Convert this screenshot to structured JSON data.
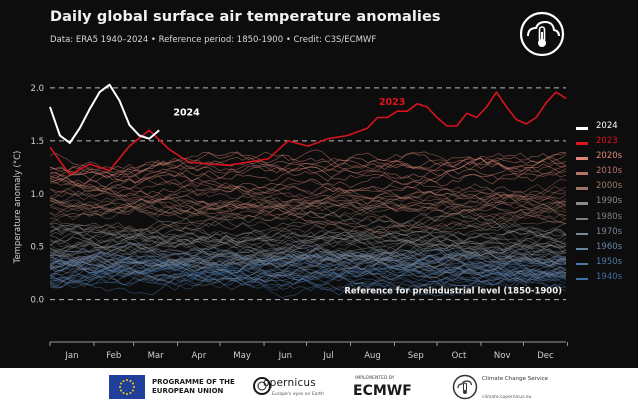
{
  "header": {
    "title": "Daily global surface air temperature anomalies",
    "subtitle": "Data: ERA5 1940–2024  •  Reference period: 1850-1900  •  Credit: C3S/ECMWF",
    "logo_icon": "thermometer-cloud-icon"
  },
  "chart_data": {
    "type": "line",
    "title": "Daily global surface air temperature anomalies",
    "xlabel": "",
    "ylabel": "Temperature anomaly (°C)",
    "ylim": [
      -0.4,
      2.15
    ],
    "yticks": [
      0.0,
      0.5,
      1.0,
      1.5,
      2.0
    ],
    "ytick_labels": [
      "0.0",
      "0.5",
      "1.0",
      "1.5",
      "2.0"
    ],
    "xticks": [
      "Jan",
      "Feb",
      "Mar",
      "Apr",
      "May",
      "Jun",
      "Jul",
      "Aug",
      "Sep",
      "Oct",
      "Nov",
      "Dec"
    ],
    "reference_lines": [
      {
        "y": 2.0,
        "style": "dashed",
        "color": "#bbbbbb"
      },
      {
        "y": 1.5,
        "style": "dashed",
        "color": "#bbbbbb"
      },
      {
        "y": 0.0,
        "style": "dashed",
        "color": "#bbbbbb",
        "label": "Reference for preindustrial level (1850-1900)"
      }
    ],
    "annotations": [
      {
        "text": "2024",
        "series": "2024",
        "color": "#ffffff"
      },
      {
        "text": "2023",
        "series": "2023",
        "color": "#e0141e"
      }
    ],
    "series": [
      {
        "name": "2024",
        "color": "#ffffff",
        "width": 2.0,
        "day_of_year": [
          1,
          8,
          15,
          22,
          29,
          36,
          43,
          50,
          57,
          64,
          71,
          78
        ],
        "values": [
          1.82,
          1.55,
          1.48,
          1.62,
          1.8,
          1.96,
          2.03,
          1.88,
          1.65,
          1.55,
          1.52,
          1.6
        ]
      },
      {
        "name": "2023",
        "color": "#d7141e",
        "width": 1.6,
        "day_of_year": [
          1,
          15,
          29,
          43,
          57,
          71,
          85,
          99,
          113,
          127,
          141,
          155,
          169,
          183,
          197,
          211,
          225,
          232,
          239,
          246,
          253,
          260,
          267,
          274,
          281,
          288,
          295,
          302,
          309,
          316,
          323,
          330,
          337,
          344,
          351,
          358,
          365
        ],
        "values": [
          1.44,
          1.18,
          1.28,
          1.22,
          1.45,
          1.6,
          1.42,
          1.3,
          1.28,
          1.27,
          1.3,
          1.33,
          1.5,
          1.45,
          1.52,
          1.55,
          1.62,
          1.72,
          1.72,
          1.78,
          1.78,
          1.85,
          1.82,
          1.72,
          1.64,
          1.64,
          1.76,
          1.72,
          1.82,
          1.96,
          1.82,
          1.7,
          1.66,
          1.72,
          1.86,
          1.96,
          1.9
        ]
      }
    ],
    "decades": [
      {
        "name": "2020s",
        "color": "#e08678",
        "base": 1.22,
        "spread": 0.22
      },
      {
        "name": "2010s",
        "color": "#b7756a",
        "base": 0.98,
        "spread": 0.22
      },
      {
        "name": "2000s",
        "color": "#9a7666",
        "base": 0.82,
        "spread": 0.22
      },
      {
        "name": "1990s",
        "color": "#8d8a87",
        "base": 0.62,
        "spread": 0.22
      },
      {
        "name": "1980s",
        "color": "#7c7f86",
        "base": 0.5,
        "spread": 0.22
      },
      {
        "name": "1970s",
        "color": "#7a8799",
        "base": 0.35,
        "spread": 0.22
      },
      {
        "name": "1960s",
        "color": "#6a84a6",
        "base": 0.3,
        "spread": 0.22
      },
      {
        "name": "1950s",
        "color": "#4f79a6",
        "base": 0.25,
        "spread": 0.22
      },
      {
        "name": "1940s",
        "color": "#3f6ea3",
        "base": 0.27,
        "spread": 0.22
      }
    ]
  },
  "legend": [
    {
      "label": "2024",
      "color": "#ffffff"
    },
    {
      "label": "2023",
      "color": "#e0141e"
    },
    {
      "label": "2020s",
      "color": "#e08678"
    },
    {
      "label": "2010s",
      "color": "#b7756a"
    },
    {
      "label": "2000s",
      "color": "#9a7666"
    },
    {
      "label": "1990s",
      "color": "#8d8a87"
    },
    {
      "label": "1980s",
      "color": "#7c7f86"
    },
    {
      "label": "1970s",
      "color": "#7a8799"
    },
    {
      "label": "1960s",
      "color": "#6a84a6"
    },
    {
      "label": "1950s",
      "color": "#4f79a6"
    },
    {
      "label": "1940s",
      "color": "#3f6ea3"
    }
  ],
  "footer": {
    "eu_label": "PROGRAMME OF THE EUROPEAN UNION",
    "copernicus_label": "opernicus",
    "copernicus_sub": "Europe's eyes on Earth",
    "ecmwf_small": "IMPLEMENTED BY",
    "ecmwf_label": "ECMWF",
    "c3s_label": "Climate Change Service",
    "c3s_url": "climate.copernicus.eu"
  }
}
